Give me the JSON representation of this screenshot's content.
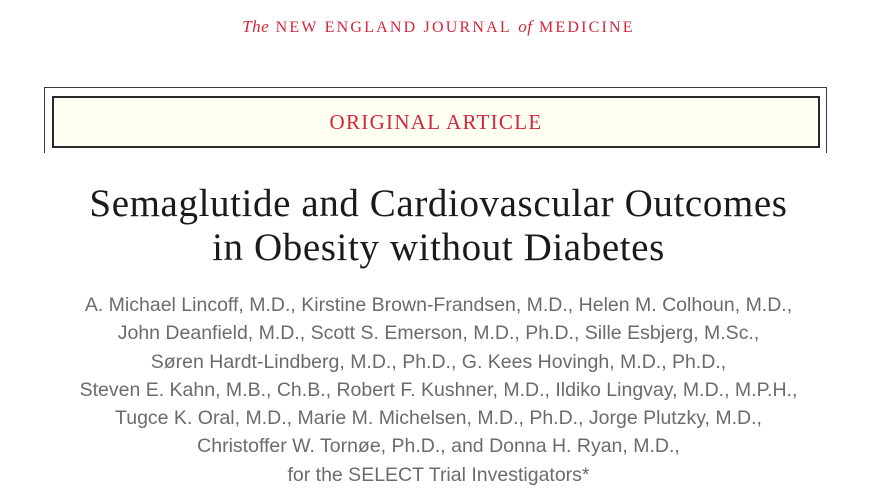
{
  "masthead": {
    "prefix": "The",
    "name_part1": "NEW ENGLAND JOURNAL",
    "connector": "of",
    "name_part2": "MEDICINE"
  },
  "article": {
    "type": "ORIGINAL ARTICLE",
    "title_lines": [
      "Semaglutide and Cardiovascular Outcomes",
      "in Obesity without Diabetes"
    ],
    "author_lines": [
      "A. Michael Lincoff, M.D., Kirstine Brown-Frandsen, M.D., Helen M. Colhoun, M.D.,",
      "John Deanfield, M.D., Scott S. Emerson, M.D., Ph.D., Sille Esbjerg, M.Sc.,",
      "Søren Hardt-Lindberg, M.D., Ph.D., G. Kees Hovingh, M.D., Ph.D.,",
      "Steven E. Kahn, M.B., Ch.B., Robert F. Kushner, M.D., Ildiko Lingvay, M.D., M.P.H.,",
      "Tugce K. Oral, M.D., Marie M. Michelsen, M.D., Ph.D., Jorge Plutzky, M.D.,",
      "Christoffer W. Tornøe, Ph.D., and Donna H. Ryan, M.D.,",
      "for the SELECT Trial Investigators*"
    ]
  },
  "colors": {
    "accent_red": "#d4253a",
    "box_background": "#fffff2",
    "title_text": "#1a1a1a",
    "author_text": "#6b6b6b",
    "frame_border": "#2a2a2a"
  }
}
